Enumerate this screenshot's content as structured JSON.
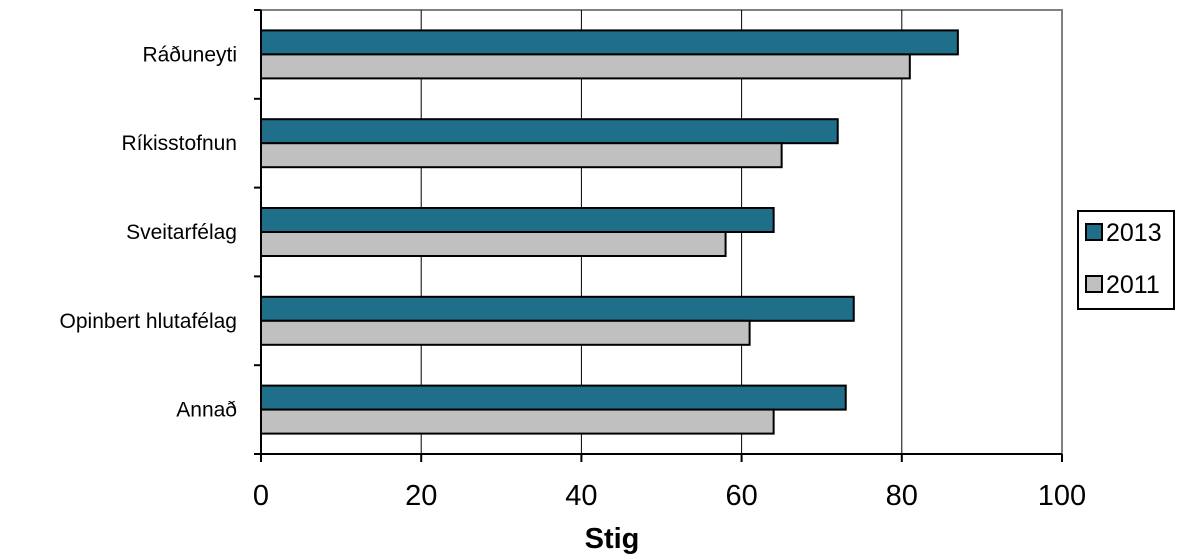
{
  "chart_data": {
    "type": "bar",
    "orientation": "horizontal",
    "categories": [
      "Ráðuneyti",
      "Ríkisstofnun",
      "Sveitarfélag",
      "Opinbert hlutafélag",
      "Annað"
    ],
    "series": [
      {
        "name": "2013",
        "values": [
          87,
          72,
          64,
          74,
          73
        ],
        "color": "#1f6f8b"
      },
      {
        "name": "2011",
        "values": [
          81,
          65,
          58,
          61,
          64
        ],
        "color": "#c0c0c0"
      }
    ],
    "xlabel": "Stig",
    "ylabel": "",
    "xlim": [
      0,
      100
    ],
    "xticks": [
      "0",
      "20",
      "40",
      "60",
      "80",
      "100"
    ],
    "grid": "vertical",
    "legend_position": "right"
  }
}
